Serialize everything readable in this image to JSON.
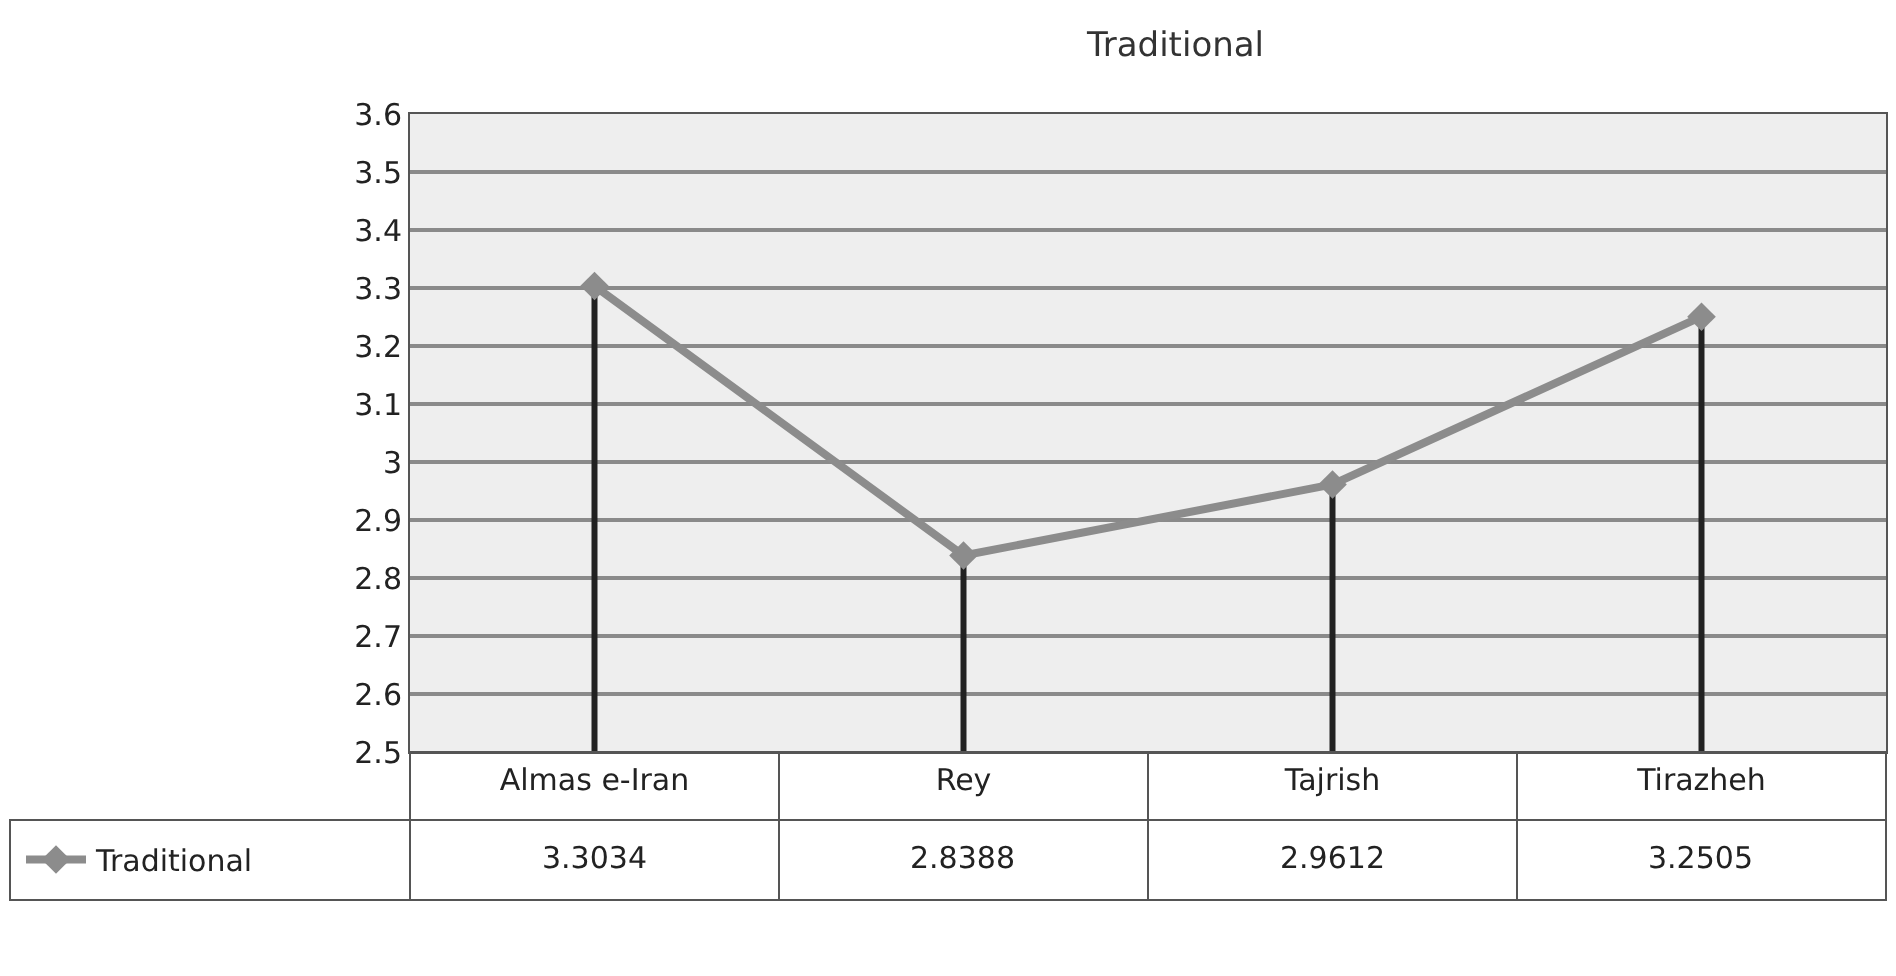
{
  "chart_data": {
    "type": "line",
    "title": "Traditional",
    "categories": [
      "Almas e-Iran",
      "Rey",
      "Tajrish",
      "Tirazheh"
    ],
    "series": [
      {
        "name": "Traditional",
        "color": "#8c8c8c",
        "values": [
          3.3034,
          2.8388,
          2.9612,
          3.2505
        ],
        "errors": [
          [
            2.5,
            3.3034
          ],
          [
            2.5,
            2.8388
          ],
          [
            2.5,
            2.9612
          ],
          [
            2.5,
            3.2505
          ]
        ]
      }
    ],
    "ylim": [
      2.5,
      3.6
    ],
    "yticks": [
      2.5,
      2.6,
      2.7,
      2.8,
      2.9,
      3,
      3.1,
      3.2,
      3.3,
      3.4,
      3.5,
      3.6
    ],
    "grid": "y",
    "legend": "bottom left",
    "marker": "diamond",
    "line_style": "solid",
    "data_labels": true
  }
}
